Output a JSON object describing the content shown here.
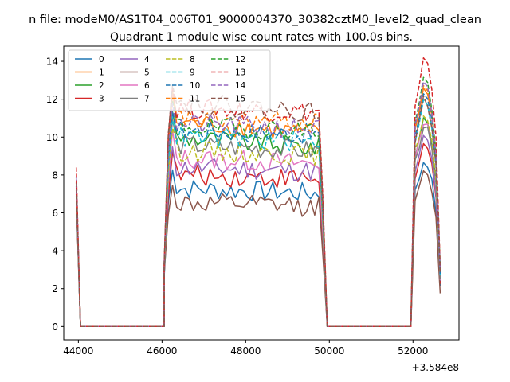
{
  "chart_data": {
    "type": "line",
    "suptitle": "n file: modeM0/AS1T04_006T01_9000004370_30382cztM0_level2_quad_clean",
    "title": "Quadrant 1 module wise count rates with 100.0s bins.",
    "x_offset_label": "+3.584e8",
    "xlim": [
      43650,
      53100
    ],
    "ylim": [
      -0.7,
      14.8
    ],
    "xticks": [
      44000,
      46000,
      48000,
      50000,
      52000
    ],
    "xtick_labels": [
      "44000",
      "46000",
      "48000",
      "50000",
      "52000"
    ],
    "yticks": [
      0,
      2,
      4,
      6,
      8,
      10,
      12,
      14
    ],
    "ytick_labels": [
      "0",
      "2",
      "4",
      "6",
      "8",
      "10",
      "12",
      "14"
    ],
    "x": {
      "segment1": [
        43950,
        44050
      ],
      "gap1": [
        44050,
        46050
      ],
      "segment2_start": 46050,
      "segment2_end": 49850,
      "step": 100,
      "gap2": [
        49950,
        51950
      ],
      "segment3": [
        51950,
        52050,
        52150,
        52250,
        52350,
        52450,
        52550,
        52650
      ]
    },
    "legend": {
      "placement": "upper-left",
      "columns": 4
    },
    "series": [
      {
        "name": "0",
        "color": "#1f77b4",
        "dash": false,
        "first": 7.0,
        "level": 7.3,
        "end": 6.5,
        "peak": 8.7
      },
      {
        "name": "1",
        "color": "#ff7f0e",
        "dash": false,
        "first": 7.6,
        "level": 10.8,
        "end": 9.0,
        "peak": 12.6
      },
      {
        "name": "2",
        "color": "#2ca02c",
        "dash": false,
        "first": 7.4,
        "level": 10.0,
        "end": 8.4,
        "peak": 11.0
      },
      {
        "name": "3",
        "color": "#d62728",
        "dash": false,
        "first": 7.2,
        "level": 8.0,
        "end": 7.4,
        "peak": 9.6
      },
      {
        "name": "4",
        "color": "#9467bd",
        "dash": false,
        "first": 7.3,
        "level": 8.4,
        "end": 7.8,
        "peak": 10.0
      },
      {
        "name": "5",
        "color": "#8c564b",
        "dash": false,
        "first": 6.9,
        "level": 6.5,
        "end": 6.0,
        "peak": 8.1
      },
      {
        "name": "6",
        "color": "#e377c2",
        "dash": false,
        "first": 7.5,
        "level": 8.9,
        "end": 8.0,
        "peak": 10.8
      },
      {
        "name": "7",
        "color": "#7f7f7f",
        "dash": false,
        "first": 7.4,
        "level": 9.6,
        "end": 8.6,
        "peak": 10.6
      },
      {
        "name": "8",
        "color": "#bcbd22",
        "dash": true,
        "first": 7.6,
        "level": 9.3,
        "end": 8.6,
        "peak": 11.2
      },
      {
        "name": "9",
        "color": "#17becf",
        "dash": true,
        "first": 7.5,
        "level": 10.0,
        "end": 9.2,
        "peak": 12.0
      },
      {
        "name": "10",
        "color": "#1f77b4",
        "dash": true,
        "first": 7.7,
        "level": 10.4,
        "end": 9.6,
        "peak": 12.3
      },
      {
        "name": "11",
        "color": "#ff7f0e",
        "dash": true,
        "first": 7.8,
        "level": 11.0,
        "end": 10.2,
        "peak": 12.7
      },
      {
        "name": "12",
        "color": "#2ca02c",
        "dash": true,
        "first": 7.9,
        "level": 10.6,
        "end": 9.8,
        "peak": 13.1
      },
      {
        "name": "13",
        "color": "#d62728",
        "dash": true,
        "first": 8.4,
        "level": 11.5,
        "end": 11.0,
        "peak": 14.1
      },
      {
        "name": "14",
        "color": "#9467bd",
        "dash": true,
        "first": 7.9,
        "level": 10.7,
        "end": 9.9,
        "peak": 12.8
      },
      {
        "name": "15",
        "color": "#8c564b",
        "dash": true,
        "first": 7.6,
        "level": 11.8,
        "end": 10.4,
        "peak": 12.0
      }
    ]
  }
}
